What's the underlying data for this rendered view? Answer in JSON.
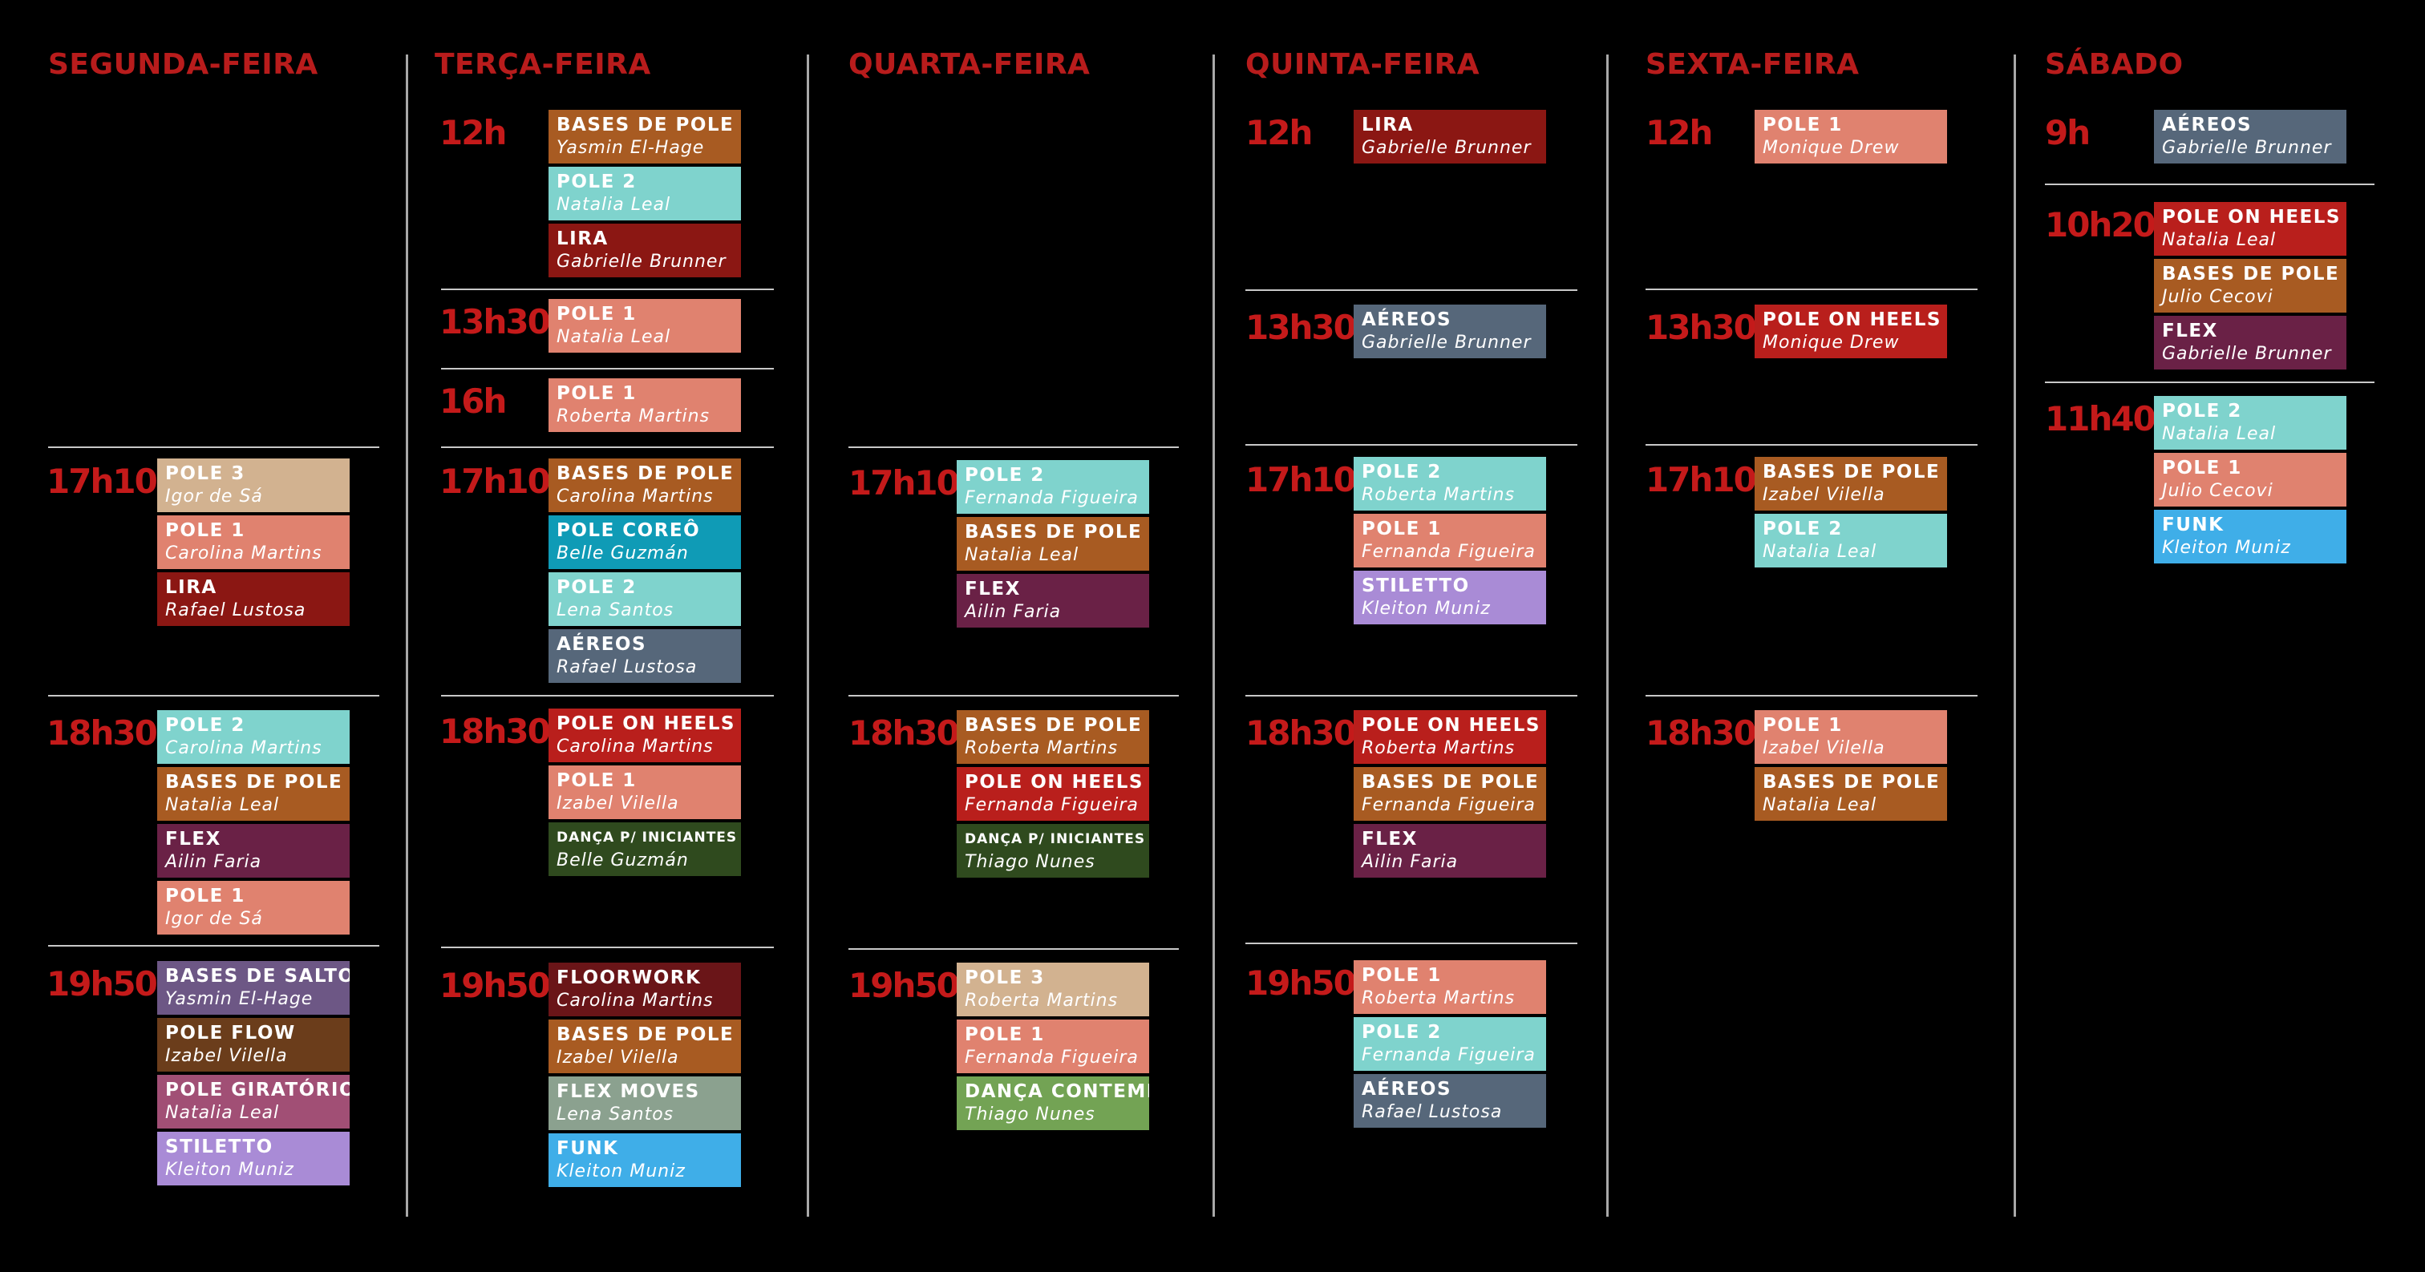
{
  "colors": {
    "background": "#000000",
    "day_title": "#b81c1c",
    "time": "#c41a1a",
    "divider": "#a8a8a8"
  },
  "days": [
    {
      "name": "SEGUNDA-FEIRA",
      "slots": [
        {
          "time": "17h10",
          "classes": [
            {
              "name": "POLE 3",
              "instructor": "Igor de Sá",
              "color": "#d2b290"
            },
            {
              "name": "POLE 1",
              "instructor": "Carolina Martins",
              "color": "#e0826f"
            },
            {
              "name": "LIRA",
              "instructor": "Rafael Lustosa",
              "color": "#8b1713"
            }
          ]
        },
        {
          "time": "18h30",
          "classes": [
            {
              "name": "POLE 2",
              "instructor": "Carolina Martins",
              "color": "#7fd3cd"
            },
            {
              "name": "BASES DE POLE",
              "instructor": "Natalia Leal",
              "color": "#a85b22"
            },
            {
              "name": "FLEX",
              "instructor": "Ailin Faria",
              "color": "#6a2146"
            },
            {
              "name": "POLE 1",
              "instructor": "Igor de Sá",
              "color": "#e0826f"
            }
          ]
        },
        {
          "time": "19h50",
          "classes": [
            {
              "name": "BASES DE SALTO",
              "instructor": "Yasmin El-Hage",
              "color": "#6d5785"
            },
            {
              "name": "POLE FLOW",
              "instructor": "Izabel Vilella",
              "color": "#6b3d1b"
            },
            {
              "name": "POLE GIRATÓRIO",
              "instructor": "Natalia Leal",
              "color": "#a14f75"
            },
            {
              "name": "STILETTO",
              "instructor": "Kleiton Muniz",
              "color": "#a98bd6"
            }
          ]
        }
      ]
    },
    {
      "name": "TERÇA-FEIRA",
      "slots": [
        {
          "time": "12h",
          "classes": [
            {
              "name": "BASES DE POLE",
              "instructor": "Yasmin El-Hage",
              "color": "#a85b22"
            },
            {
              "name": "POLE 2",
              "instructor": "Natalia Leal",
              "color": "#7fd3cd"
            },
            {
              "name": "LIRA",
              "instructor": "Gabrielle Brunner",
              "color": "#8b1713"
            }
          ]
        },
        {
          "time": "13h30",
          "classes": [
            {
              "name": "POLE 1",
              "instructor": "Natalia Leal",
              "color": "#e0826f"
            }
          ]
        },
        {
          "time": "16h",
          "classes": [
            {
              "name": "POLE 1",
              "instructor": "Roberta Martins",
              "color": "#e0826f"
            }
          ]
        },
        {
          "time": "17h10",
          "classes": [
            {
              "name": "BASES DE POLE",
              "instructor": "Carolina Martins",
              "color": "#a85b22"
            },
            {
              "name": "POLE COREÔ",
              "instructor": "Belle Guzmán",
              "color": "#0f9bb6"
            },
            {
              "name": "POLE 2",
              "instructor": "Lena Santos",
              "color": "#7fd3cd"
            },
            {
              "name": "AÉREOS",
              "instructor": "Rafael Lustosa",
              "color": "#56677a"
            }
          ]
        },
        {
          "time": "18h30",
          "classes": [
            {
              "name": "POLE ON HEELS",
              "instructor": "Carolina Martins",
              "color": "#b91f1c"
            },
            {
              "name": "POLE 1",
              "instructor": "Izabel Vilella",
              "color": "#e0826f"
            },
            {
              "name": "DANÇA P/ INICIANTES",
              "instructor": "Belle Guzmán",
              "color": "#2f4a1e"
            }
          ]
        },
        {
          "time": "19h50",
          "classes": [
            {
              "name": "FLOORWORK",
              "instructor": "Carolina Martins",
              "color": "#6a1518"
            },
            {
              "name": "BASES DE POLE",
              "instructor": "Izabel Vilella",
              "color": "#a85b22"
            },
            {
              "name": "FLEX MOVES",
              "instructor": "Lena Santos",
              "color": "#8ba18f"
            },
            {
              "name": "FUNK",
              "instructor": "Kleiton Muniz",
              "color": "#3faee8"
            }
          ]
        }
      ]
    },
    {
      "name": "QUARTA-FEIRA",
      "slots": [
        {
          "time": "17h10",
          "classes": [
            {
              "name": "POLE 2",
              "instructor": "Fernanda Figueira",
              "color": "#7fd3cd"
            },
            {
              "name": "BASES DE POLE",
              "instructor": "Natalia Leal",
              "color": "#a85b22"
            },
            {
              "name": "FLEX",
              "instructor": "Ailin Faria",
              "color": "#6a2146"
            }
          ]
        },
        {
          "time": "18h30",
          "classes": [
            {
              "name": "BASES DE POLE",
              "instructor": "Roberta Martins",
              "color": "#a85b22"
            },
            {
              "name": "POLE ON HEELS",
              "instructor": "Fernanda Figueira",
              "color": "#b91f1c"
            },
            {
              "name": "DANÇA P/ INICIANTES",
              "instructor": "Thiago Nunes",
              "color": "#2f4a1e"
            }
          ]
        },
        {
          "time": "19h50",
          "classes": [
            {
              "name": "POLE 3",
              "instructor": "Roberta Martins",
              "color": "#d2b290"
            },
            {
              "name": "POLE 1",
              "instructor": "Fernanda Figueira",
              "color": "#e0826f"
            },
            {
              "name": "DANÇA CONTEMP.",
              "instructor": "Thiago Nunes",
              "color": "#73a354"
            }
          ]
        }
      ]
    },
    {
      "name": "QUINTA-FEIRA",
      "slots": [
        {
          "time": "12h",
          "classes": [
            {
              "name": "LIRA",
              "instructor": "Gabrielle Brunner",
              "color": "#8b1713"
            }
          ]
        },
        {
          "time": "13h30",
          "classes": [
            {
              "name": "AÉREOS",
              "instructor": "Gabrielle Brunner",
              "color": "#56677a"
            }
          ]
        },
        {
          "time": "17h10",
          "classes": [
            {
              "name": "POLE 2",
              "instructor": "Roberta Martins",
              "color": "#7fd3cd"
            },
            {
              "name": "POLE 1",
              "instructor": "Fernanda Figueira",
              "color": "#e0826f"
            },
            {
              "name": "STILETTO",
              "instructor": "Kleiton Muniz",
              "color": "#a98bd6"
            }
          ]
        },
        {
          "time": "18h30",
          "classes": [
            {
              "name": "POLE ON HEELS",
              "instructor": "Roberta Martins",
              "color": "#b91f1c"
            },
            {
              "name": "BASES DE POLE",
              "instructor": "Fernanda Figueira",
              "color": "#a85b22"
            },
            {
              "name": "FLEX",
              "instructor": "Ailin Faria",
              "color": "#6a2146"
            }
          ]
        },
        {
          "time": "19h50",
          "classes": [
            {
              "name": "POLE 1",
              "instructor": "Roberta Martins",
              "color": "#e0826f"
            },
            {
              "name": "POLE 2",
              "instructor": "Fernanda Figueira",
              "color": "#7fd3cd"
            },
            {
              "name": "AÉREOS",
              "instructor": "Rafael Lustosa",
              "color": "#56677a"
            }
          ]
        }
      ]
    },
    {
      "name": "SEXTA-FEIRA",
      "slots": [
        {
          "time": "12h",
          "classes": [
            {
              "name": "POLE 1",
              "instructor": "Monique Drew",
              "color": "#e0826f"
            }
          ]
        },
        {
          "time": "13h30",
          "classes": [
            {
              "name": "POLE ON HEELS",
              "instructor": "Monique Drew",
              "color": "#b91f1c"
            }
          ]
        },
        {
          "time": "17h10",
          "classes": [
            {
              "name": "BASES DE POLE",
              "instructor": "Izabel Vilella",
              "color": "#a85b22"
            },
            {
              "name": "POLE 2",
              "instructor": "Natalia Leal",
              "color": "#7fd3cd"
            }
          ]
        },
        {
          "time": "18h30",
          "classes": [
            {
              "name": "POLE 1",
              "instructor": "Izabel Vilella",
              "color": "#e0826f"
            },
            {
              "name": "BASES DE POLE",
              "instructor": "Natalia Leal",
              "color": "#a85b22"
            }
          ]
        }
      ]
    },
    {
      "name": "SÁBADO",
      "slots": [
        {
          "time": "9h",
          "classes": [
            {
              "name": "AÉREOS",
              "instructor": "Gabrielle Brunner",
              "color": "#56677a"
            }
          ]
        },
        {
          "time": "10h20",
          "classes": [
            {
              "name": "POLE ON HEELS",
              "instructor": "Natalia Leal",
              "color": "#b91f1c"
            },
            {
              "name": "BASES DE POLE",
              "instructor": "Julio Cecovi",
              "color": "#a85b22"
            },
            {
              "name": "FLEX",
              "instructor": "Gabrielle Brunner",
              "color": "#6a2146"
            }
          ]
        },
        {
          "time": "11h40",
          "classes": [
            {
              "name": "POLE 2",
              "instructor": "Natalia Leal",
              "color": "#7fd3cd"
            },
            {
              "name": "POLE 1",
              "instructor": "Julio Cecovi",
              "color": "#e0826f"
            },
            {
              "name": "FUNK",
              "instructor": "Kleiton Muniz",
              "color": "#3faee8"
            }
          ]
        }
      ]
    }
  ]
}
